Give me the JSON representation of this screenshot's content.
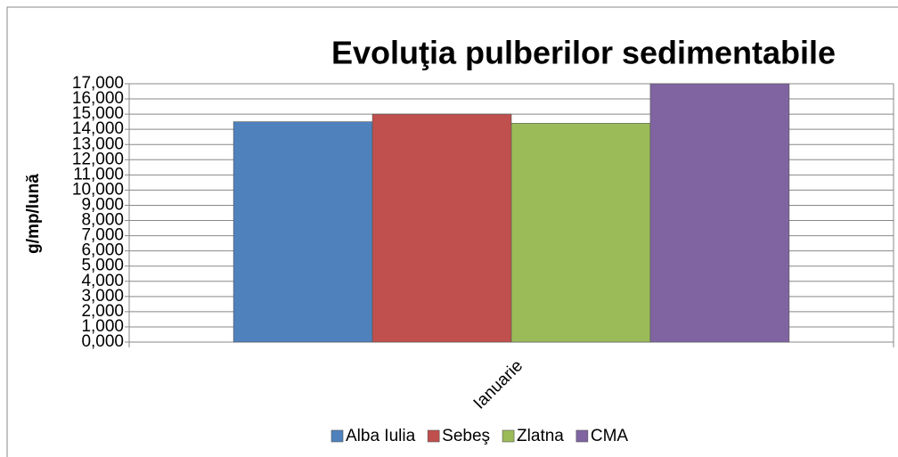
{
  "chart_data": {
    "type": "bar",
    "title": "Evoluţia pulberilor sedimentabile",
    "ylabel": "g/mp/lună",
    "categories": [
      "Ianuarie"
    ],
    "series": [
      {
        "name": "Alba Iulia",
        "color": "#4f81bd",
        "values": [
          14.5
        ]
      },
      {
        "name": "Sebeş",
        "color": "#c0504d",
        "values": [
          15.0
        ]
      },
      {
        "name": "Zlatna",
        "color": "#9bbb59",
        "values": [
          14.4
        ]
      },
      {
        "name": "CMA",
        "color": "#8064a2",
        "values": [
          17
        ]
      }
    ],
    "ylim": [
      0,
      17
    ],
    "yticks": [
      {
        "value": 0,
        "label": "0,000"
      },
      {
        "value": 1,
        "label": "1,000"
      },
      {
        "value": 2,
        "label": "2,000"
      },
      {
        "value": 3,
        "label": "3,000"
      },
      {
        "value": 4,
        "label": "4,000"
      },
      {
        "value": 5,
        "label": "5,000"
      },
      {
        "value": 6,
        "label": "6,000"
      },
      {
        "value": 7,
        "label": "7,000"
      },
      {
        "value": 8,
        "label": "8,000"
      },
      {
        "value": 9,
        "label": "9,000"
      },
      {
        "value": 10,
        "label": "10,000"
      },
      {
        "value": 11,
        "label": "11,000"
      },
      {
        "value": 12,
        "label": "12,000"
      },
      {
        "value": 13,
        "label": "13,000"
      },
      {
        "value": 14,
        "label": "14,000"
      },
      {
        "value": 15,
        "label": "15,000"
      },
      {
        "value": 16,
        "label": "16,000"
      },
      {
        "value": 17,
        "label": "17,000"
      }
    ],
    "grid": true,
    "legend": "bottom"
  }
}
